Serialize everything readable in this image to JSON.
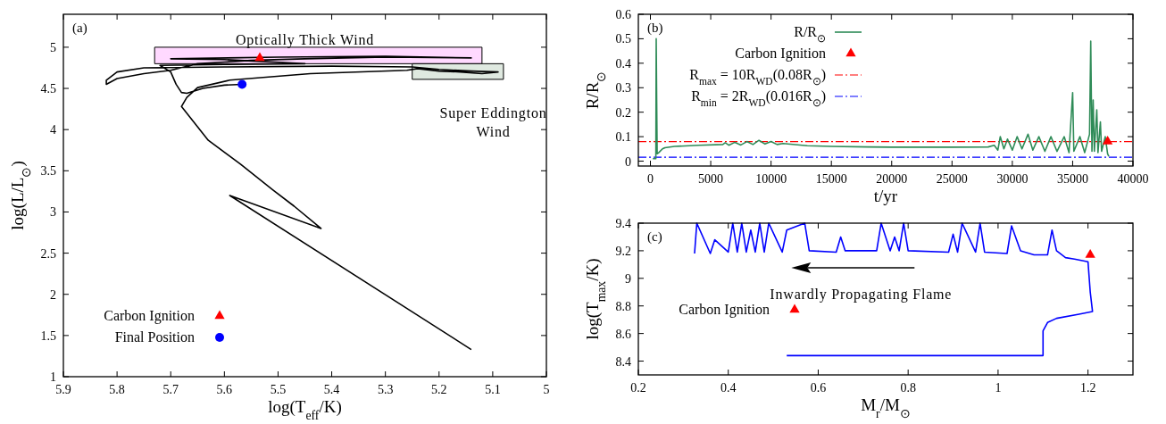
{
  "chart_data": [
    {
      "type": "line",
      "xlabel": "log(T$_{eff}$/K)",
      "ylabel": "log(L/L$_{⊙}$)",
      "xlim": [
        5.9,
        5.0
      ],
      "ylim": [
        1,
        5.4
      ],
      "xticks": [
        5.9,
        5.8,
        5.7,
        5.6,
        5.5,
        5.4,
        5.3,
        5.2,
        5.1,
        5
      ],
      "yticks": [
        1,
        1.5,
        2,
        2.5,
        3,
        3.5,
        4,
        4.5,
        5
      ],
      "legend": "bottom left",
      "annotations": [
        "(a)",
        "Optically Thick Wind",
        "Super Eddington Wind"
      ],
      "series": [
        {
          "type": "area",
          "color": "#ffd9ff",
          "x": [
            5.73,
            5.73,
            5.12,
            5.12,
            5.73
          ],
          "values": [
            4.8,
            5.0,
            5.0,
            4.8,
            4.8
          ]
        },
        {
          "type": "area",
          "color": "#dfe9e0",
          "x": [
            5.25,
            5.25,
            5.08,
            5.08,
            5.25
          ],
          "values": [
            4.61,
            4.8,
            4.8,
            4.61,
            4.61
          ]
        },
        {
          "type": "line",
          "color": "#000000",
          "x": [
            5.14,
            5.59,
            5.42,
            5.47,
            5.51,
            5.57,
            5.63,
            5.68,
            5.67,
            5.65,
            5.59,
            5.44,
            5.26,
            5.24,
            5.2,
            5.16,
            5.12,
            5.09,
            5.14,
            5.2,
            5.25,
            5.4,
            5.6,
            5.75,
            5.8,
            5.82,
            5.82,
            5.8,
            5.75,
            5.7,
            5.65,
            5.55,
            5.45,
            5.3,
            5.14,
            5.3,
            5.5,
            5.7,
            5.6,
            5.45,
            5.6,
            5.72,
            5.7,
            5.69,
            5.68,
            5.67,
            5.64,
            5.6,
            5.567
          ],
          "values": [
            1.33,
            3.2,
            2.8,
            3.07,
            3.27,
            3.58,
            3.87,
            4.28,
            4.39,
            4.51,
            4.6,
            4.68,
            4.72,
            4.74,
            4.71,
            4.7,
            4.68,
            4.7,
            4.71,
            4.73,
            4.76,
            4.77,
            4.76,
            4.75,
            4.7,
            4.6,
            4.55,
            4.62,
            4.68,
            4.72,
            4.8,
            4.84,
            4.86,
            4.88,
            4.87,
            4.89,
            4.88,
            4.86,
            4.85,
            4.8,
            4.79,
            4.78,
            4.7,
            4.55,
            4.45,
            4.44,
            4.5,
            4.54,
            4.55
          ]
        },
        {
          "type": "scatter",
          "name": "Carbon Ignition",
          "color": "#ff0000",
          "marker": "triangle",
          "x": [
            5.534
          ],
          "values": [
            4.87
          ]
        },
        {
          "type": "scatter",
          "name": "Final Position",
          "color": "#0000ff",
          "marker": "circle",
          "x": [
            5.567
          ],
          "values": [
            4.55
          ]
        }
      ]
    },
    {
      "type": "line",
      "xlabel": "t/yr",
      "ylabel": "R/R$_{⊙}$",
      "xlim": [
        -1000,
        40000
      ],
      "ylim": [
        -0.02,
        0.6
      ],
      "xticks": [
        0,
        5000,
        10000,
        15000,
        20000,
        25000,
        30000,
        35000,
        40000
      ],
      "yticks": [
        0,
        0.1,
        0.2,
        0.3,
        0.4,
        0.5,
        0.6
      ],
      "legend": "top",
      "annotations": [
        "(b)"
      ],
      "ref_lines": [
        {
          "axis": "y",
          "value": 0.08,
          "label": "R$_{max}$ = 10R$_{WD}$(0.08R$_{⊙}$)",
          "color": "#ff0000",
          "line_style": "dashdot"
        },
        {
          "axis": "y",
          "value": 0.016,
          "label": "R$_{min}$ = 2R$_{WD}$(0.016R$_{⊙}$)",
          "color": "#0000ff",
          "line_style": "dashdot"
        }
      ],
      "series": [
        {
          "type": "line",
          "name": "R/R$_{⊙}$",
          "color": "#2e8b57",
          "x": [
            200,
            450,
            480,
            520,
            560,
            700,
            1000,
            1200,
            2000,
            4000,
            6000,
            6200,
            6500,
            7000,
            7500,
            8000,
            8500,
            9000,
            9500,
            10000,
            10500,
            11000,
            13000,
            15000,
            18000,
            20000,
            25000,
            28000,
            28500,
            28800,
            29000,
            29300,
            29600,
            30000,
            30400,
            30800,
            31300,
            31700,
            32200,
            32700,
            33200,
            33700,
            34300,
            34700,
            35000,
            35100,
            35600,
            36000,
            36400,
            36500,
            36600,
            36700,
            36800,
            37000,
            37100,
            37300,
            37400,
            37700,
            37900,
            38000
          ],
          "values": [
            0.01,
            0.01,
            0.5,
            0.25,
            0.03,
            0.035,
            0.05,
            0.055,
            0.06,
            0.065,
            0.068,
            0.075,
            0.065,
            0.077,
            0.066,
            0.08,
            0.068,
            0.085,
            0.07,
            0.08,
            0.068,
            0.072,
            0.063,
            0.06,
            0.058,
            0.057,
            0.057,
            0.058,
            0.065,
            0.045,
            0.1,
            0.05,
            0.09,
            0.045,
            0.1,
            0.05,
            0.11,
            0.045,
            0.1,
            0.04,
            0.1,
            0.04,
            0.1,
            0.035,
            0.28,
            0.04,
            0.1,
            0.035,
            0.11,
            0.49,
            0.04,
            0.25,
            0.04,
            0.21,
            0.035,
            0.16,
            0.04,
            0.1,
            0.03,
            0.02
          ]
        },
        {
          "type": "scatter",
          "name": "Carbon Ignition",
          "color": "#ff0000",
          "marker": "triangle",
          "x": [
            37900
          ],
          "values": [
            0.08
          ]
        }
      ]
    },
    {
      "type": "line",
      "xlabel": "M$_{r}$/M$_{⊙}$",
      "ylabel": "log(T$_{max}$/K)",
      "xlim": [
        0.2,
        1.3
      ],
      "ylim": [
        8.3,
        9.4
      ],
      "xticks": [
        0.2,
        0.4,
        0.6,
        0.8,
        1,
        1.2
      ],
      "yticks": [
        8.4,
        8.6,
        8.8,
        9,
        9.2,
        9.4
      ],
      "legend": "left",
      "annotations": [
        "(c)",
        "Inwardly Propagating Flame"
      ],
      "series": [
        {
          "type": "line",
          "color": "#0000ff",
          "x": [
            0.53,
            1.1,
            1.1,
            1.11,
            1.13,
            1.18,
            1.21,
            1.205,
            1.2,
            1.17,
            1.15,
            1.13,
            1.12,
            1.11,
            1.08,
            1.05,
            1.03,
            1.02,
            0.97,
            0.96,
            0.95,
            0.92,
            0.91,
            0.9,
            0.89,
            0.8,
            0.79,
            0.78,
            0.77,
            0.76,
            0.74,
            0.73,
            0.66,
            0.65,
            0.64,
            0.58,
            0.57,
            0.53,
            0.52,
            0.49,
            0.48,
            0.47,
            0.46,
            0.45,
            0.44,
            0.43,
            0.42,
            0.41,
            0.4,
            0.37,
            0.36,
            0.33,
            0.325
          ],
          "values": [
            8.44,
            8.44,
            8.62,
            8.68,
            8.71,
            8.74,
            8.76,
            8.9,
            9.12,
            9.14,
            9.15,
            9.2,
            9.35,
            9.17,
            9.17,
            9.2,
            9.38,
            9.18,
            9.19,
            9.4,
            9.19,
            9.4,
            9.19,
            9.32,
            9.19,
            9.2,
            9.4,
            9.2,
            9.3,
            9.2,
            9.4,
            9.2,
            9.2,
            9.3,
            9.19,
            9.2,
            9.4,
            9.35,
            9.19,
            9.4,
            9.19,
            9.4,
            9.19,
            9.35,
            9.19,
            9.4,
            9.19,
            9.4,
            9.19,
            9.28,
            9.18,
            9.4,
            9.18
          ]
        },
        {
          "type": "scatter",
          "name": "Carbon Ignition",
          "color": "#ff0000",
          "marker": "triangle",
          "x": [
            1.205
          ],
          "values": [
            9.17
          ]
        }
      ]
    }
  ]
}
